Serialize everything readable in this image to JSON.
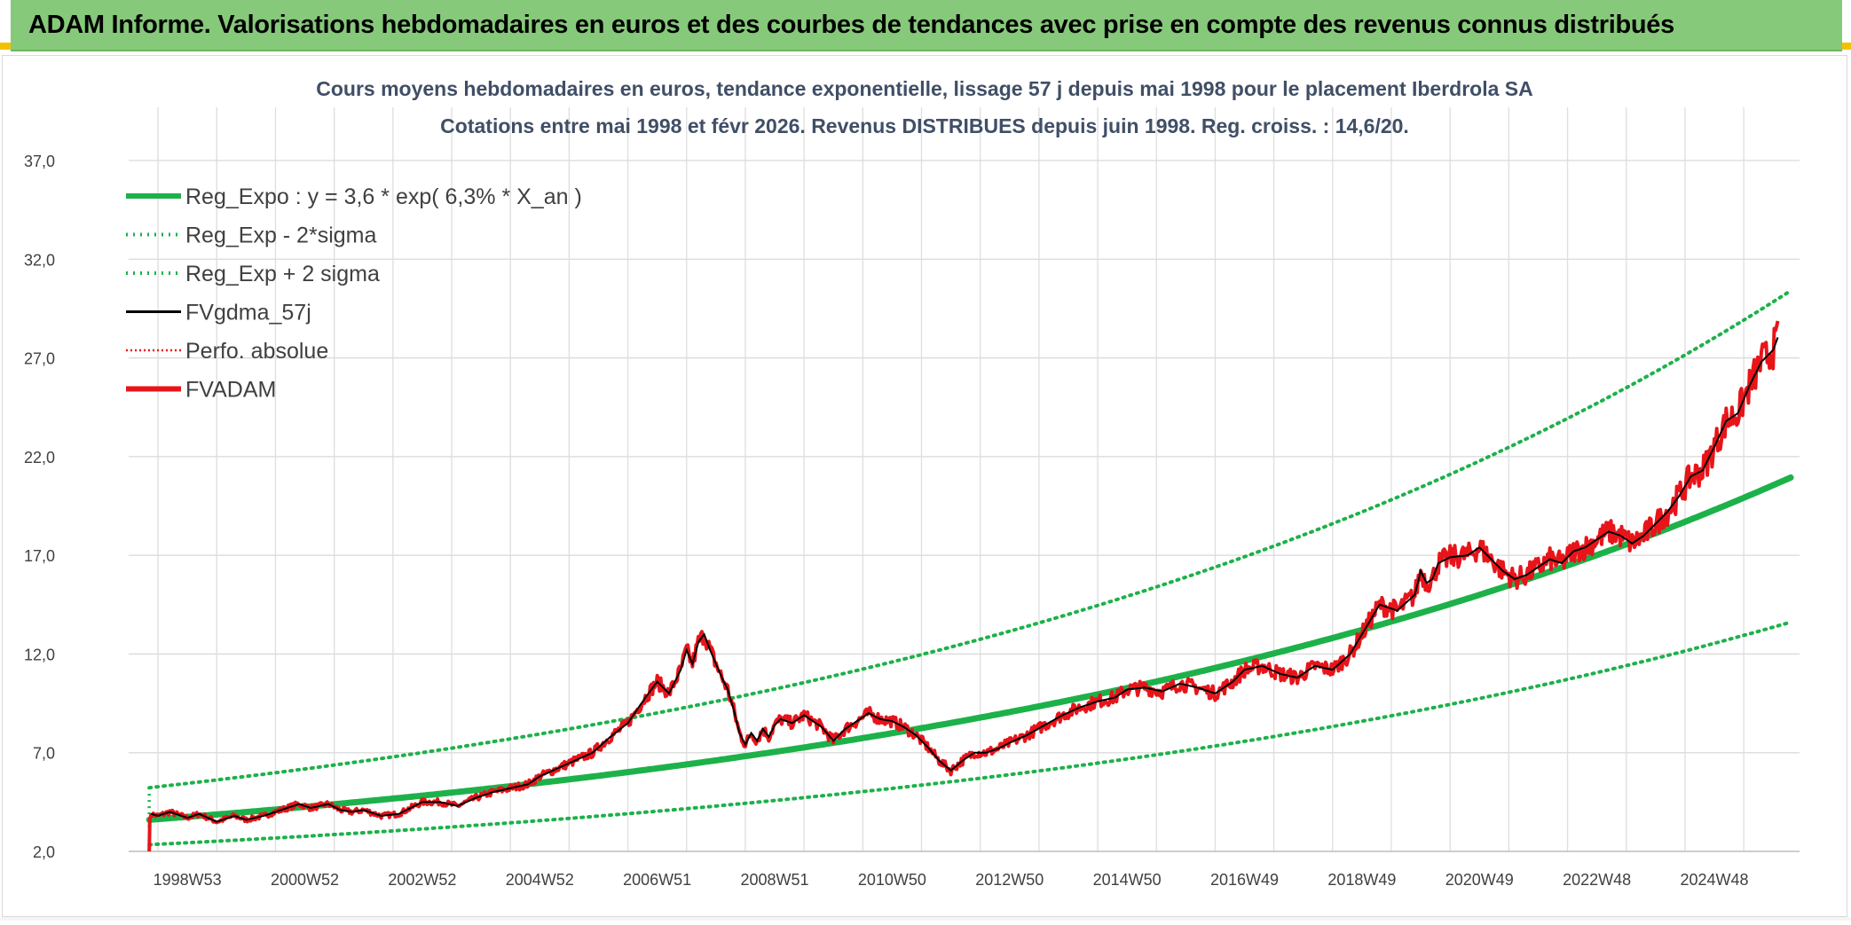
{
  "header": {
    "title": "ADAM Informe. Valorisations hebdomadaires en euros et des courbes de tendances avec prise en compte des revenus connus distribués",
    "bg_color": "#86c97a"
  },
  "chart_data": {
    "type": "line",
    "title_line1": "Cours moyens hebdomadaires en euros, tendance exponentielle, lissage 57 j depuis mai 1998 pour le placement Iberdrola SA",
    "title_line2": "Cotations entre mai 1998 et févr 2026. Revenus DISTRIBUES depuis juin 1998. Reg. croiss. : 14,6/20.",
    "xlabel": "",
    "ylabel": "",
    "ylim": [
      2.0,
      37.0
    ],
    "xlim": [
      1998.0,
      2026.45
    ],
    "yticks": [
      {
        "v": 2,
        "label": "2,0"
      },
      {
        "v": 7,
        "label": "7,0"
      },
      {
        "v": 12,
        "label": "12,0"
      },
      {
        "v": 17,
        "label": "17,0"
      },
      {
        "v": 22,
        "label": "22,0"
      },
      {
        "v": 27,
        "label": "27,0"
      },
      {
        "v": 32,
        "label": "32,0"
      },
      {
        "v": 37,
        "label": "37,0"
      }
    ],
    "xticks": [
      {
        "t": 1999.0,
        "label": "1998W53"
      },
      {
        "t": 2001.0,
        "label": "2000W52"
      },
      {
        "t": 2003.0,
        "label": "2002W52"
      },
      {
        "t": 2005.0,
        "label": "2004W52"
      },
      {
        "t": 2007.0,
        "label": "2006W51"
      },
      {
        "t": 2009.0,
        "label": "2008W51"
      },
      {
        "t": 2011.0,
        "label": "2010W50"
      },
      {
        "t": 2013.0,
        "label": "2012W50"
      },
      {
        "t": 2015.0,
        "label": "2014W50"
      },
      {
        "t": 2017.0,
        "label": "2016W49"
      },
      {
        "t": 2019.0,
        "label": "2018W49"
      },
      {
        "t": 2021.0,
        "label": "2020W49"
      },
      {
        "t": 2023.0,
        "label": "2022W48"
      },
      {
        "t": 2025.0,
        "label": "2024W48"
      }
    ],
    "regression": {
      "a": 3.6,
      "rate": 0.063,
      "t0": 1998.35,
      "t_end": 2026.3,
      "sigma_factor": 0.68
    },
    "legend": [
      {
        "name": "Reg_Expo : y = 3,6 * exp( 6,3% *  X_an )",
        "color": "#1db14a",
        "style": "solid-thick"
      },
      {
        "name": "Reg_Exp - 2*sigma",
        "color": "#1db14a",
        "style": "dotted"
      },
      {
        "name": "Reg_Exp + 2 sigma",
        "color": "#1db14a",
        "style": "dotted"
      },
      {
        "name": "FVgdma_57j",
        "color": "#000000",
        "style": "solid"
      },
      {
        "name": "Perfo. absolue",
        "color": "#e8141a",
        "style": "dotted"
      },
      {
        "name": "FVADAM",
        "color": "#e8141a",
        "style": "solid-thick"
      }
    ],
    "series_fvadam": {
      "t": [
        1998.35,
        1998.36,
        1998.38,
        1998.5,
        1998.7,
        1999.0,
        1999.2,
        1999.5,
        1999.8,
        2000.0,
        2000.3,
        2000.6,
        2000.9,
        2001.1,
        2001.4,
        2001.6,
        2001.8,
        2002.0,
        2002.3,
        2002.6,
        2002.8,
        2003.0,
        2003.3,
        2003.6,
        2003.9,
        2004.2,
        2004.5,
        2004.8,
        2005.0,
        2005.3,
        2005.6,
        2005.9,
        2006.2,
        2006.5,
        2006.8,
        2007.0,
        2007.2,
        2007.4,
        2007.5,
        2007.6,
        2007.7,
        2007.8,
        2007.9,
        2008.0,
        2008.1,
        2008.2,
        2008.3,
        2008.4,
        2008.5,
        2008.6,
        2008.7,
        2008.8,
        2008.9,
        2009.0,
        2009.1,
        2009.3,
        2009.5,
        2009.8,
        2010.0,
        2010.2,
        2010.4,
        2010.6,
        2010.8,
        2011.0,
        2011.2,
        2011.4,
        2011.6,
        2011.8,
        2012.0,
        2012.2,
        2012.4,
        2012.6,
        2012.8,
        2013.0,
        2013.3,
        2013.6,
        2013.9,
        2014.2,
        2014.5,
        2014.8,
        2015.0,
        2015.3,
        2015.6,
        2015.9,
        2016.2,
        2016.5,
        2016.8,
        2017.0,
        2017.3,
        2017.6,
        2017.9,
        2018.2,
        2018.5,
        2018.8,
        2019.0,
        2019.3,
        2019.6,
        2019.9,
        2020.0,
        2020.1,
        2020.2,
        2020.3,
        2020.5,
        2020.8,
        2021.0,
        2021.2,
        2021.4,
        2021.6,
        2021.8,
        2022.0,
        2022.2,
        2022.4,
        2022.6,
        2022.8,
        2023.0,
        2023.2,
        2023.4,
        2023.6,
        2023.8,
        2024.0,
        2024.2,
        2024.4,
        2024.6,
        2024.8,
        2025.0,
        2025.2,
        2025.4,
        2025.6,
        2025.8,
        2026.0,
        2026.1,
        2026.2,
        2026.3
      ],
      "v": [
        2.0,
        3.6,
        3.9,
        3.8,
        4.0,
        3.7,
        3.9,
        3.5,
        3.8,
        3.6,
        3.8,
        4.1,
        4.4,
        4.2,
        4.4,
        4.1,
        4.0,
        4.1,
        3.8,
        3.9,
        4.2,
        4.5,
        4.5,
        4.3,
        4.7,
        5.0,
        5.2,
        5.4,
        5.8,
        6.2,
        6.6,
        7.0,
        7.8,
        8.5,
        9.8,
        10.6,
        10.0,
        11.2,
        12.2,
        11.5,
        12.6,
        13.0,
        12.2,
        11.5,
        10.8,
        10.2,
        9.2,
        8.0,
        7.4,
        8.0,
        7.6,
        8.2,
        7.8,
        8.4,
        8.7,
        8.5,
        8.9,
        8.3,
        7.6,
        8.2,
        8.6,
        9.0,
        8.7,
        8.6,
        8.3,
        7.9,
        7.3,
        6.6,
        6.1,
        6.6,
        7.0,
        7.0,
        7.2,
        7.5,
        7.9,
        8.4,
        8.9,
        9.3,
        9.6,
        9.8,
        10.2,
        10.3,
        10.1,
        10.5,
        10.3,
        10.0,
        10.6,
        11.2,
        11.4,
        11.0,
        10.8,
        11.4,
        11.2,
        12.0,
        13.0,
        14.5,
        14.2,
        15.0,
        16.2,
        15.6,
        15.8,
        16.6,
        16.9,
        17.0,
        17.4,
        16.8,
        16.2,
        15.8,
        16.0,
        16.4,
        16.8,
        16.6,
        17.2,
        17.4,
        17.8,
        18.2,
        18.0,
        17.6,
        18.0,
        18.6,
        19.2,
        20.0,
        21.0,
        21.3,
        22.5,
        23.8,
        24.2,
        25.6,
        26.8,
        27.4,
        28.2
      ]
    }
  }
}
